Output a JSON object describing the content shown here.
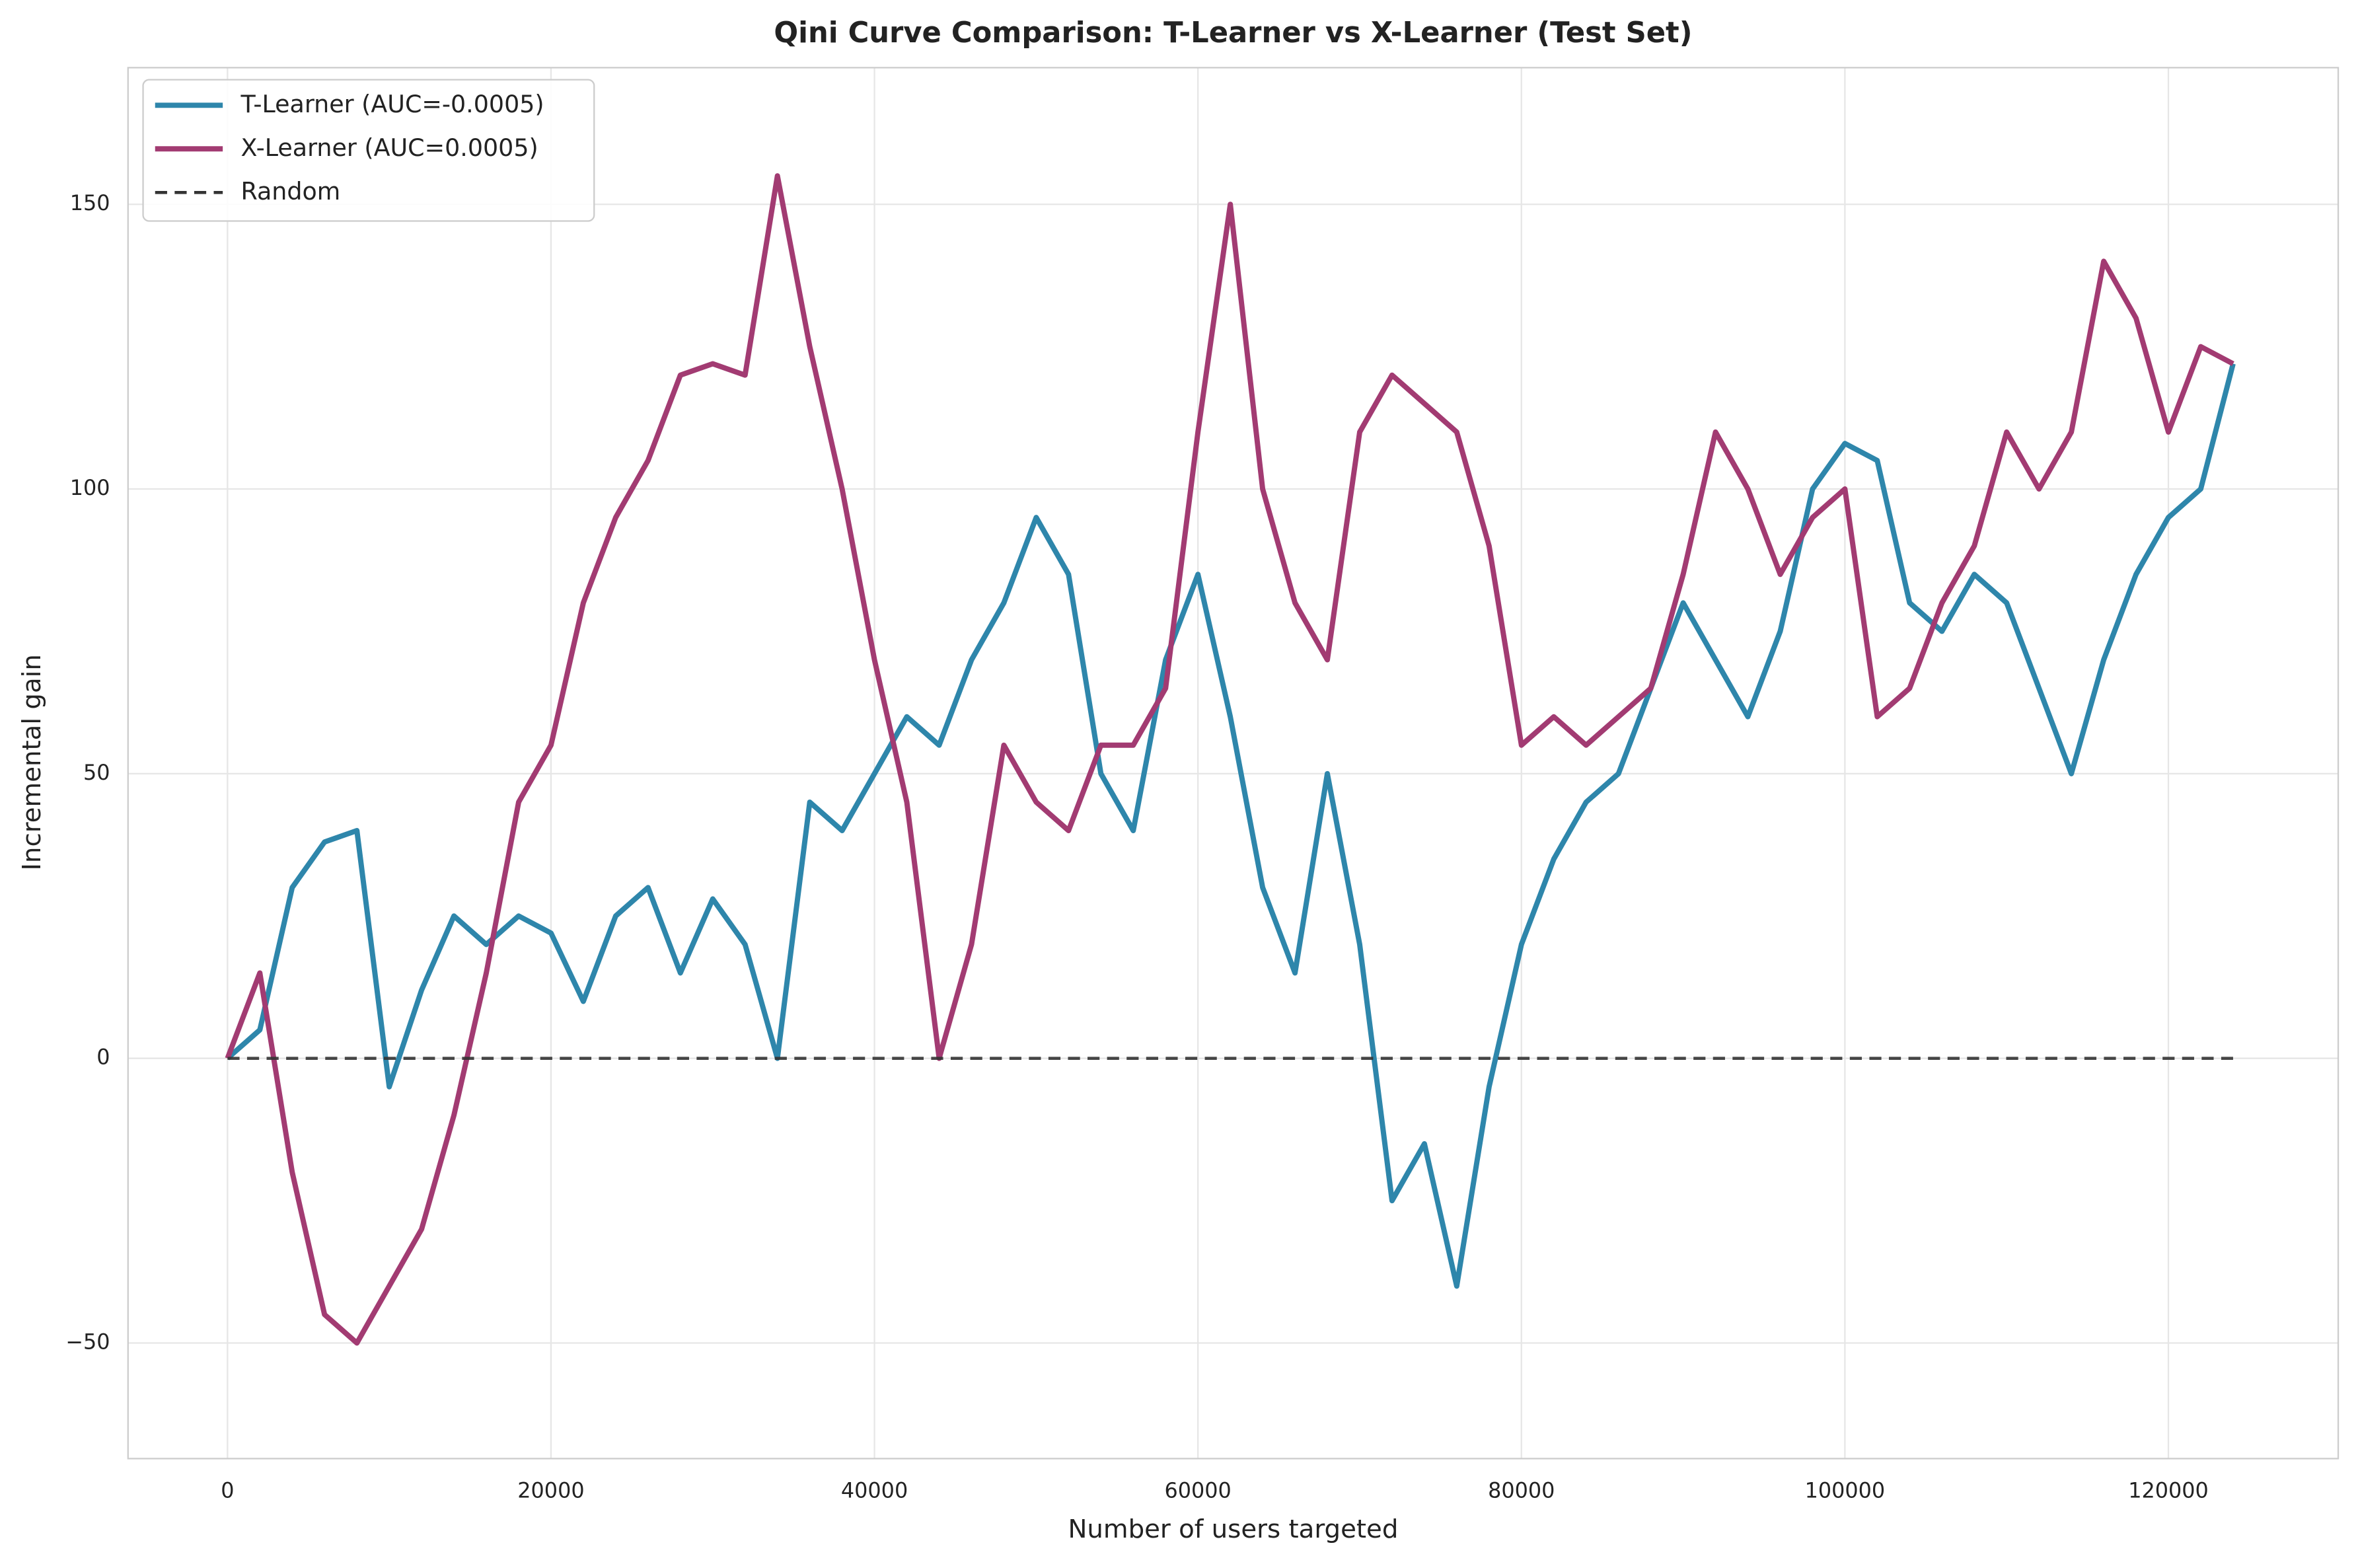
{
  "chart_data": {
    "type": "line",
    "title": "Qini Curve Comparison: T-Learner vs X-Learner (Test Set)",
    "x_label": "Number of users targeted",
    "y_label": "Incremental gain",
    "x": [
      0,
      2000,
      4000,
      6000,
      8000,
      10000,
      12000,
      14000,
      16000,
      18000,
      20000,
      22000,
      24000,
      26000,
      28000,
      30000,
      32000,
      34000,
      36000,
      38000,
      40000,
      42000,
      44000,
      46000,
      48000,
      50000,
      52000,
      54000,
      56000,
      58000,
      60000,
      62000,
      64000,
      66000,
      68000,
      70000,
      72000,
      74000,
      76000,
      78000,
      80000,
      82000,
      84000,
      86000,
      88000,
      90000,
      92000,
      94000,
      96000,
      98000,
      100000,
      102000,
      104000,
      106000,
      108000,
      110000,
      112000,
      114000,
      116000,
      118000,
      120000,
      122000,
      124000
    ],
    "series": [
      {
        "name": "T-Learner (AUC=-0.0005)",
        "color": "#2e86ab",
        "values": [
          0,
          5,
          30,
          38,
          40,
          -5,
          12,
          25,
          20,
          25,
          22,
          10,
          25,
          30,
          15,
          28,
          20,
          0,
          45,
          40,
          50,
          60,
          55,
          70,
          80,
          95,
          85,
          50,
          40,
          70,
          85,
          60,
          30,
          15,
          50,
          20,
          -25,
          -15,
          -40,
          -5,
          20,
          35,
          45,
          50,
          65,
          80,
          70,
          60,
          75,
          100,
          108,
          105,
          80,
          75,
          85,
          80,
          65,
          50,
          70,
          85,
          95,
          100,
          122
        ]
      },
      {
        "name": "X-Learner (AUC=0.0005)",
        "color": "#a23b72",
        "values": [
          0,
          15,
          -20,
          -45,
          -50,
          -40,
          -30,
          -10,
          15,
          45,
          55,
          80,
          95,
          105,
          120,
          122,
          120,
          155,
          125,
          100,
          70,
          45,
          0,
          20,
          55,
          45,
          40,
          55,
          55,
          65,
          110,
          150,
          100,
          80,
          70,
          110,
          120,
          115,
          110,
          90,
          55,
          60,
          55,
          60,
          65,
          85,
          110,
          100,
          85,
          95,
          100,
          60,
          65,
          80,
          90,
          110,
          100,
          110,
          140,
          130,
          110,
          125,
          122
        ]
      },
      {
        "name": "Random",
        "color": "#333333",
        "dashed": true,
        "x": [
          0,
          124000
        ],
        "values": [
          0,
          0
        ]
      }
    ],
    "xlim": [
      -6150,
      130500
    ],
    "ylim": [
      -70.3,
      174
    ],
    "xticks": [
      0,
      20000,
      40000,
      60000,
      80000,
      100000,
      120000
    ],
    "yticks": [
      {
        "value": -50,
        "label": "−50"
      },
      0,
      50,
      100,
      150
    ],
    "grid": true,
    "legend": "upper left"
  }
}
